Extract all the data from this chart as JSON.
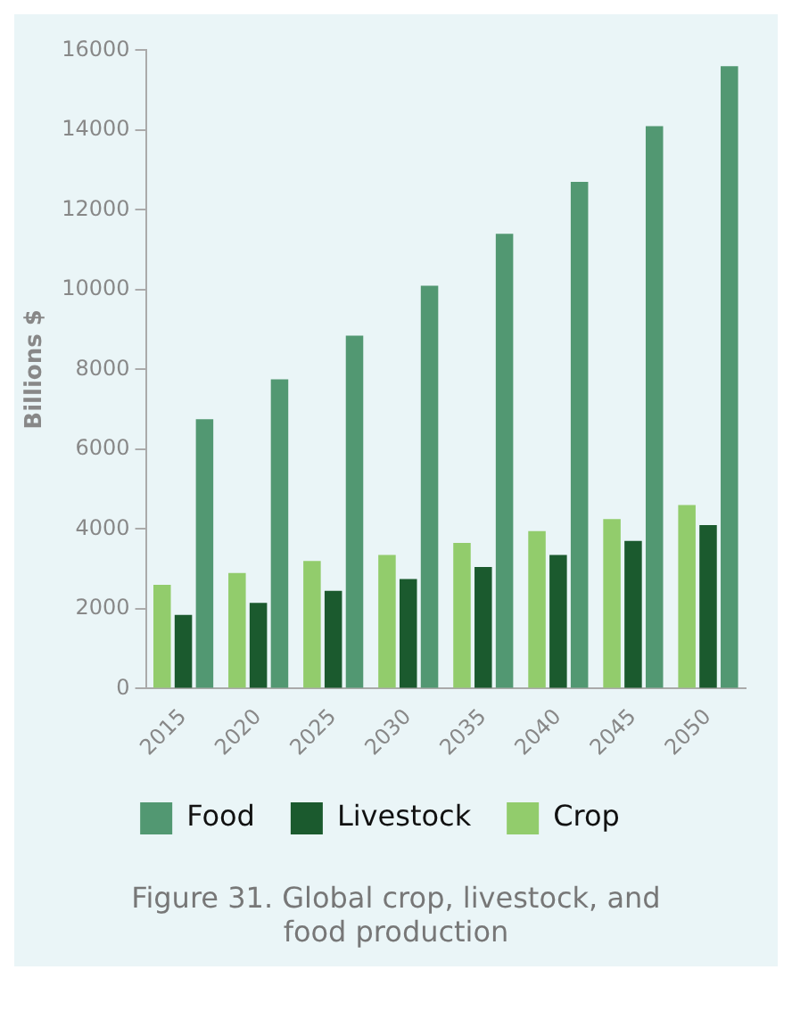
{
  "chart_data": {
    "type": "bar",
    "ylabel": "Billions $",
    "categories": [
      "2015",
      "2020",
      "2025",
      "2030",
      "2035",
      "2040",
      "2045",
      "2050"
    ],
    "series": [
      {
        "name": "Crop",
        "color": "#92cc6c",
        "values": [
          2600,
          2900,
          3200,
          3350,
          3650,
          3950,
          4250,
          4600
        ]
      },
      {
        "name": "Livestock",
        "color": "#1b5a2e",
        "values": [
          1850,
          2150,
          2450,
          2750,
          3050,
          3350,
          3700,
          4100
        ]
      },
      {
        "name": "Food",
        "color": "#529872",
        "values": [
          6750,
          7750,
          8850,
          10100,
          11400,
          12700,
          14100,
          15600
        ]
      }
    ],
    "ylim": [
      0,
      16000
    ],
    "yticks": [
      0,
      2000,
      4000,
      6000,
      8000,
      10000,
      12000,
      14000,
      16000
    ],
    "grid": false,
    "legend": "bottom",
    "annotations": [
      "Figure 31. Global crop, livestock, and food production"
    ]
  }
}
